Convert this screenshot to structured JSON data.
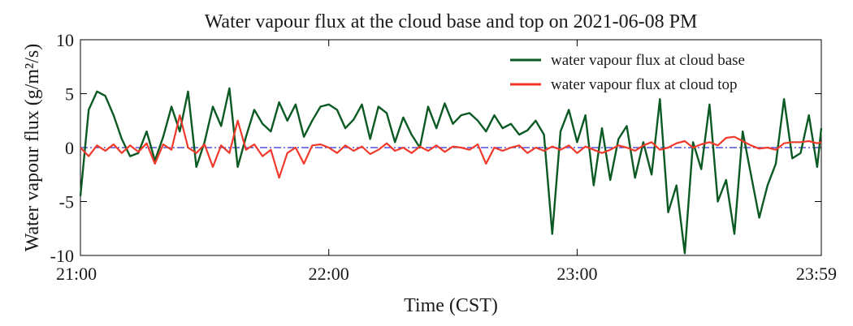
{
  "chart_data": {
    "type": "line",
    "title": "Water vapour flux at the cloud base and top on 2021-06-08 PM",
    "xlabel": "Time (CST)",
    "ylabel": "Water vapour flux (g/m²/s)",
    "xlim": [
      "21:00",
      "23:59"
    ],
    "ylim": [
      -10,
      10
    ],
    "x_ticks": [
      "21:00",
      "22:00",
      "23:00",
      "23:59"
    ],
    "y_ticks": [
      "10",
      "5",
      "0",
      "-5",
      "-10"
    ],
    "reference_line": {
      "y": 0,
      "style": "dash-dot",
      "color": "#2f2fd0"
    },
    "legend": {
      "placement": "top-right"
    },
    "grid": false,
    "series": [
      {
        "name": "water vapour flux at cloud base",
        "color": "#0b5a24",
        "x": [
          "21:00",
          "21:02",
          "21:04",
          "21:06",
          "21:08",
          "21:10",
          "21:12",
          "21:14",
          "21:16",
          "21:18",
          "21:20",
          "21:22",
          "21:24",
          "21:26",
          "21:28",
          "21:30",
          "21:32",
          "21:34",
          "21:36",
          "21:38",
          "21:40",
          "21:42",
          "21:44",
          "21:46",
          "21:48",
          "21:50",
          "21:52",
          "21:54",
          "21:56",
          "21:58",
          "22:00",
          "22:02",
          "22:04",
          "22:06",
          "22:08",
          "22:10",
          "22:12",
          "22:14",
          "22:16",
          "22:18",
          "22:20",
          "22:22",
          "22:24",
          "22:26",
          "22:28",
          "22:30",
          "22:32",
          "22:34",
          "22:36",
          "22:38",
          "22:40",
          "22:42",
          "22:44",
          "22:46",
          "22:48",
          "22:50",
          "22:52",
          "22:54",
          "22:56",
          "22:58",
          "23:00",
          "23:02",
          "23:04",
          "23:06",
          "23:08",
          "23:10",
          "23:12",
          "23:14",
          "23:16",
          "23:18",
          "23:20",
          "23:22",
          "23:24",
          "23:26",
          "23:28",
          "23:30",
          "23:32",
          "23:34",
          "23:36",
          "23:38",
          "23:40",
          "23:42",
          "23:44",
          "23:46",
          "23:48",
          "23:50",
          "23:52",
          "23:54",
          "23:56",
          "23:58",
          "23:59"
        ],
        "values": [
          -4.5,
          3.5,
          5.2,
          4.8,
          3.0,
          0.8,
          -0.8,
          -0.5,
          1.5,
          -1.2,
          1.0,
          3.8,
          1.5,
          5.2,
          -1.8,
          0.5,
          3.8,
          2.0,
          5.5,
          -1.8,
          1.0,
          3.5,
          2.2,
          1.5,
          4.2,
          2.5,
          4.0,
          1.0,
          2.5,
          3.8,
          4.0,
          3.5,
          1.8,
          2.6,
          4.0,
          0.8,
          3.8,
          3.2,
          0.5,
          2.8,
          1.2,
          0.0,
          3.8,
          1.8,
          4.1,
          2.2,
          3.0,
          3.2,
          2.5,
          1.5,
          3.0,
          1.8,
          2.2,
          1.2,
          1.6,
          2.5,
          1.2,
          -8.0,
          1.5,
          3.5,
          0.5,
          3.0,
          -3.5,
          1.8,
          -3.0,
          0.8,
          2.0,
          -2.8,
          0.5,
          -2.5,
          4.5,
          -6.0,
          -3.5,
          -9.8,
          0.5,
          -2.0,
          4.0,
          -5.0,
          -3.0,
          -8.0,
          1.5,
          -2.5,
          -6.5,
          -3.5,
          -1.5,
          4.5,
          -1.0,
          -0.5,
          3.0,
          -1.8,
          1.8
        ]
      },
      {
        "name": "water vapour flux at cloud top",
        "color": "#f0392a",
        "x": [
          "21:00",
          "21:02",
          "21:04",
          "21:06",
          "21:08",
          "21:10",
          "21:12",
          "21:14",
          "21:16",
          "21:18",
          "21:20",
          "21:22",
          "21:24",
          "21:26",
          "21:28",
          "21:30",
          "21:32",
          "21:34",
          "21:36",
          "21:38",
          "21:40",
          "21:42",
          "21:44",
          "21:46",
          "21:48",
          "21:50",
          "21:52",
          "21:54",
          "21:56",
          "21:58",
          "22:00",
          "22:02",
          "22:04",
          "22:06",
          "22:08",
          "22:10",
          "22:12",
          "22:14",
          "22:16",
          "22:18",
          "22:20",
          "22:22",
          "22:24",
          "22:26",
          "22:28",
          "22:30",
          "22:32",
          "22:34",
          "22:36",
          "22:38",
          "22:40",
          "22:42",
          "22:44",
          "22:46",
          "22:48",
          "22:50",
          "22:52",
          "22:54",
          "22:56",
          "22:58",
          "23:00",
          "23:02",
          "23:04",
          "23:06",
          "23:08",
          "23:10",
          "23:12",
          "23:14",
          "23:16",
          "23:18",
          "23:20",
          "23:22",
          "23:24",
          "23:26",
          "23:28",
          "23:30",
          "23:32",
          "23:34",
          "23:36",
          "23:38",
          "23:40",
          "23:42",
          "23:44",
          "23:46",
          "23:48",
          "23:50",
          "23:52",
          "23:54",
          "23:56",
          "23:58",
          "23:59"
        ],
        "values": [
          0.0,
          -0.8,
          0.2,
          -0.3,
          0.3,
          -0.5,
          0.2,
          -0.4,
          0.4,
          -1.5,
          0.3,
          -0.2,
          3.0,
          0.0,
          -0.5,
          0.3,
          -1.8,
          0.2,
          -0.5,
          2.5,
          -0.2,
          0.3,
          -0.8,
          -0.2,
          -2.8,
          -0.5,
          0.0,
          -1.5,
          0.2,
          0.3,
          0.0,
          -0.5,
          0.2,
          -0.3,
          0.1,
          -0.6,
          -0.2,
          0.4,
          -0.3,
          0.0,
          -0.5,
          0.1,
          -0.3,
          0.2,
          -0.4,
          0.1,
          0.0,
          -0.2,
          0.3,
          -1.5,
          0.0,
          -0.3,
          0.0,
          0.2,
          -0.5,
          0.0,
          -0.3,
          0.1,
          -0.2,
          0.2,
          -0.5,
          0.1,
          -0.2,
          -0.5,
          -0.2,
          0.2,
          0.0,
          -0.3,
          0.2,
          0.5,
          -0.2,
          0.0,
          0.4,
          0.6,
          0.0,
          0.3,
          0.5,
          0.2,
          0.9,
          1.0,
          0.6,
          0.2,
          -0.1,
          0.0,
          -0.2,
          0.4,
          0.5,
          0.5,
          0.6,
          0.4,
          0.5
        ]
      }
    ]
  }
}
